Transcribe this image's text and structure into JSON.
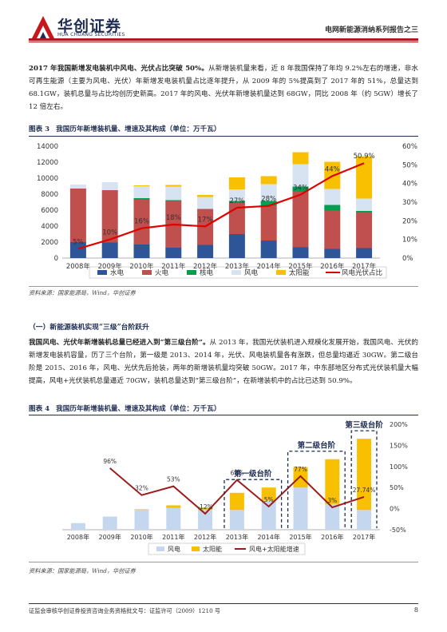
{
  "header": {
    "logo_cn": "华创证券",
    "logo_en": "HUA CHUANG SECURITIES",
    "report_title": "电网新能源消纳系列报告之三"
  },
  "para1": {
    "bold": "2017 年我国新增发电装机中风电、光伏占比突破 50%。",
    "text": "从新增装机量来看，近 8 年我国保持了年均 9.2%左右的增速，非水可再生能源（主要为风电、光伏）年新增发电装机量占比逐年提升，从 2009 年的 5%提高到了 2017 年的 51%，总量达到 68.1GW，装机总量与占比均创历史新高。2017 年的风电、光伏年新增装机量达到 68GW，同比 2008 年（约 5GW）增长了 12 倍左右。"
  },
  "fig3": {
    "label": "图表 3",
    "title": "我国历年新增装机量、增速及其构成（单位：万千瓦）",
    "source": "资料来源：国家能源局，Wind，华创证券"
  },
  "section1": {
    "heading": "（一）新能源装机实现“三级”台阶跃升"
  },
  "para2": {
    "bold": "我国风电、光伏年新增装机总量已经进入到“第三级台阶”。",
    "text": "从 2013 年，我国光伏装机进入规模化发展开始，我国风电、光伏的新增发电装机容量，历了三个台阶，第一级是 2013、2014 年，光伏、风电装机量各有涨跌，但总量均逼近 30GW。第二级台阶是 2015、2016 年，风电、光伏先后抢装，两年的新增装机量均突破 50GW。2017 年，中东部地区分布式光伏装机量大幅提高，风电+光伏装机总量逼近 70GW，装机总量达到“第三级台阶”，在新增装机中的占比已达到 50.9%。"
  },
  "fig4": {
    "label": "图表 4",
    "title": "我国历年新增装机量、增速及其构成（单位：万千瓦）",
    "source": "资料来源：国家能源局，Wind，华创证券"
  },
  "footer": {
    "left": "证监会审核华创证券投资咨询业务资格批文号：证监许可（2009）1210 号",
    "page": "8"
  },
  "chart_data": [
    {
      "type": "bar",
      "stacked": true,
      "categories": [
        "2008年",
        "2009年",
        "2010年",
        "2011年",
        "2012年",
        "2013年",
        "2014年",
        "2015年",
        "2016年",
        "2017年"
      ],
      "series": [
        {
          "name": "水电",
          "color": "#2e5597",
          "values": [
            2000,
            1950,
            1700,
            1300,
            1650,
            3000,
            2200,
            1350,
            1150,
            1250
          ]
        },
        {
          "name": "火电",
          "color": "#c0504d",
          "values": [
            6700,
            6550,
            5600,
            5850,
            4500,
            3950,
            4400,
            6950,
            4800,
            4450
          ]
        },
        {
          "name": "核电",
          "color": "#00a050",
          "values": [
            0,
            0,
            200,
            100,
            0,
            200,
            550,
            650,
            700,
            200
          ]
        },
        {
          "name": "风电",
          "color": "#d7e3f1",
          "values": [
            500,
            1000,
            1500,
            1700,
            1500,
            1450,
            2100,
            2800,
            2000,
            1550
          ]
        },
        {
          "name": "太阳能",
          "color": "#f8c000",
          "values": [
            0,
            0,
            100,
            200,
            250,
            1500,
            1000,
            1500,
            3400,
            5300
          ]
        }
      ],
      "line": {
        "name": "风电光伏占比",
        "color": "#e00000",
        "axis": "right",
        "values": [
          5,
          10,
          16,
          18,
          17,
          27,
          28,
          34,
          44,
          50.9
        ]
      },
      "line_labels": [
        "5%",
        "10%",
        "16%",
        "18%",
        "17%",
        "27%",
        "28%",
        "34%",
        "44%",
        "50.9%"
      ],
      "ylim": [
        0,
        14000
      ],
      "yticks": [
        "0",
        "2000",
        "4000",
        "6000",
        "8000",
        "10000",
        "12000",
        "14000"
      ],
      "y2lim": [
        0,
        60
      ],
      "y2ticks": [
        "0%",
        "10%",
        "20%",
        "30%",
        "40%",
        "50%",
        "60%"
      ],
      "legend": "bottom"
    },
    {
      "type": "bar",
      "stacked": true,
      "categories": [
        "2008年",
        "2009年",
        "2010年",
        "2011年",
        "2012年",
        "2013年",
        "2014年",
        "2015年",
        "2016年",
        "2017年"
      ],
      "series": [
        {
          "name": "风电",
          "color": "#c5d7ee",
          "values": [
            500,
            1000,
            1500,
            1650,
            1500,
            1500,
            2200,
            3200,
            1950,
            1500
          ]
        },
        {
          "name": "太阳能",
          "color": "#f8c000",
          "values": [
            0,
            0,
            50,
            200,
            200,
            1300,
            1000,
            1550,
            3400,
            5400
          ]
        }
      ],
      "line": {
        "name": "风电+太阳能增速",
        "color": "#9e1b1b",
        "axis": "right",
        "values": [
          null,
          96,
          32,
          53,
          -12,
          68,
          5,
          77,
          3,
          27.74
        ]
      },
      "line_labels": [
        "",
        "96%",
        "32%",
        "53%",
        "-12%",
        "68%",
        "5%",
        "77%",
        "3%",
        "27.74%"
      ],
      "ylim": [
        0,
        8000
      ],
      "y2lim": [
        -50,
        200
      ],
      "y2ticks": [
        "-50%",
        "0%",
        "50%",
        "100%",
        "150%",
        "200%"
      ],
      "annotations": [
        "第一级台阶",
        "第二级台阶",
        "第三级台阶"
      ],
      "legend": "bottom"
    }
  ]
}
